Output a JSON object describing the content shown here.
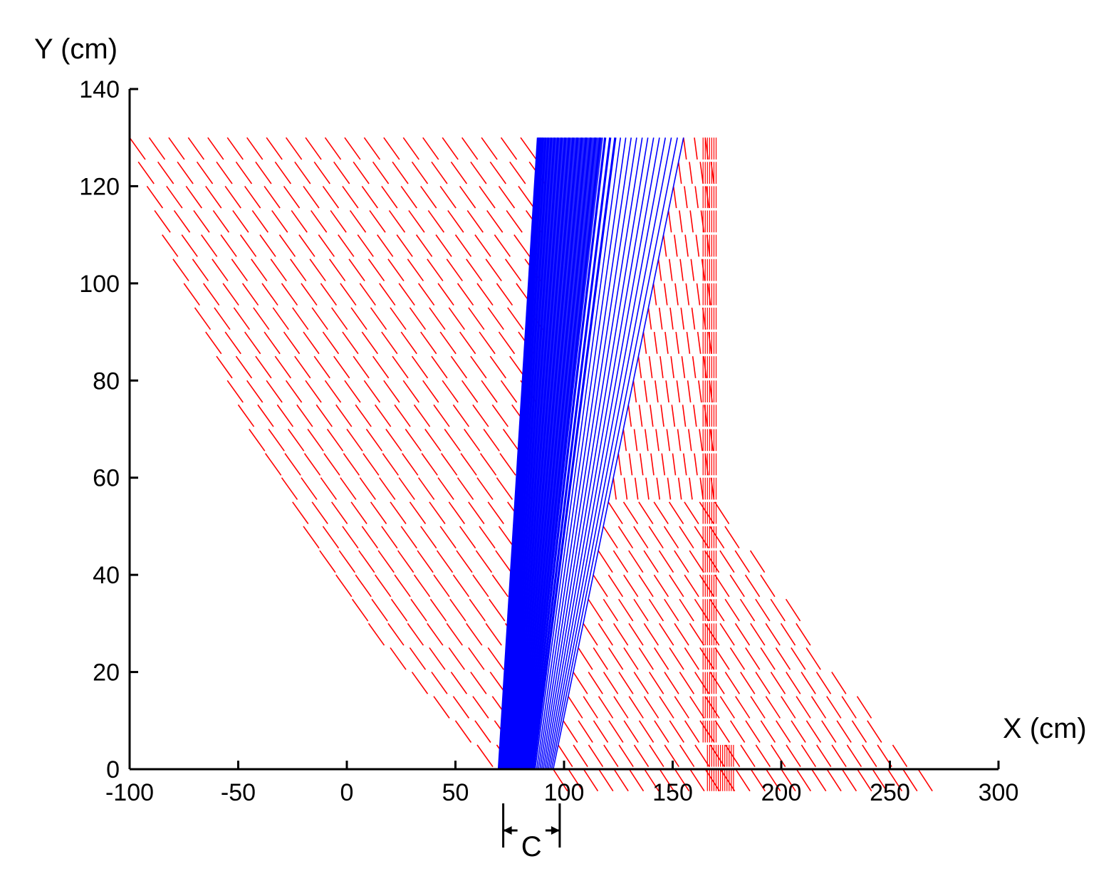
{
  "chart_data": {
    "type": "line",
    "xlabel": "X (cm)",
    "ylabel": "Y (cm)",
    "xlim": [
      -100,
      300
    ],
    "ylim": [
      0,
      140
    ],
    "xticks": [
      -100,
      -50,
      0,
      50,
      100,
      150,
      200,
      250,
      300
    ],
    "yticks": [
      0,
      20,
      40,
      60,
      80,
      100,
      120,
      140
    ],
    "grid": false,
    "legend": "none",
    "series": [
      {
        "style": "dashed",
        "color": "#ff0000",
        "description_rows": "horizontal rows of dashed trajectory lines every 5 cm in Y, fanning left above and right below",
        "row_y_values": [
          0,
          5,
          10,
          15,
          20,
          25,
          30,
          35,
          40,
          45,
          50,
          55,
          60,
          65,
          70,
          75,
          80,
          85,
          90,
          95,
          100,
          105,
          110,
          115,
          120,
          125,
          130
        ],
        "left_envelope": [
          [
            70,
            0
          ],
          [
            50,
            10
          ],
          [
            30,
            20
          ],
          [
            10,
            30
          ],
          [
            -5,
            40
          ],
          [
            -20,
            50
          ],
          [
            -30,
            60
          ],
          [
            -45,
            70
          ],
          [
            -55,
            80
          ],
          [
            -65,
            90
          ],
          [
            -75,
            100
          ],
          [
            -85,
            110
          ],
          [
            -92,
            120
          ],
          [
            -100,
            130
          ]
        ],
        "right_envelope": [
          [
            265,
            0
          ],
          [
            245,
            10
          ],
          [
            225,
            20
          ],
          [
            210,
            30
          ],
          [
            195,
            40
          ],
          [
            180,
            50
          ],
          [
            168,
            60
          ],
          [
            168,
            130
          ]
        ]
      },
      {
        "style": "solid",
        "color": "#0000ff",
        "description_rows": "dense band of solid lines from X≈70–95 at Y=0 to X≈88–155 at Y=130",
        "band_bottom": [
          70,
          95
        ],
        "band_top": [
          88,
          155
        ],
        "y_top": 130
      }
    ],
    "annotations": [
      {
        "text": "C",
        "from_x": 72,
        "to_x": 98
      }
    ]
  }
}
